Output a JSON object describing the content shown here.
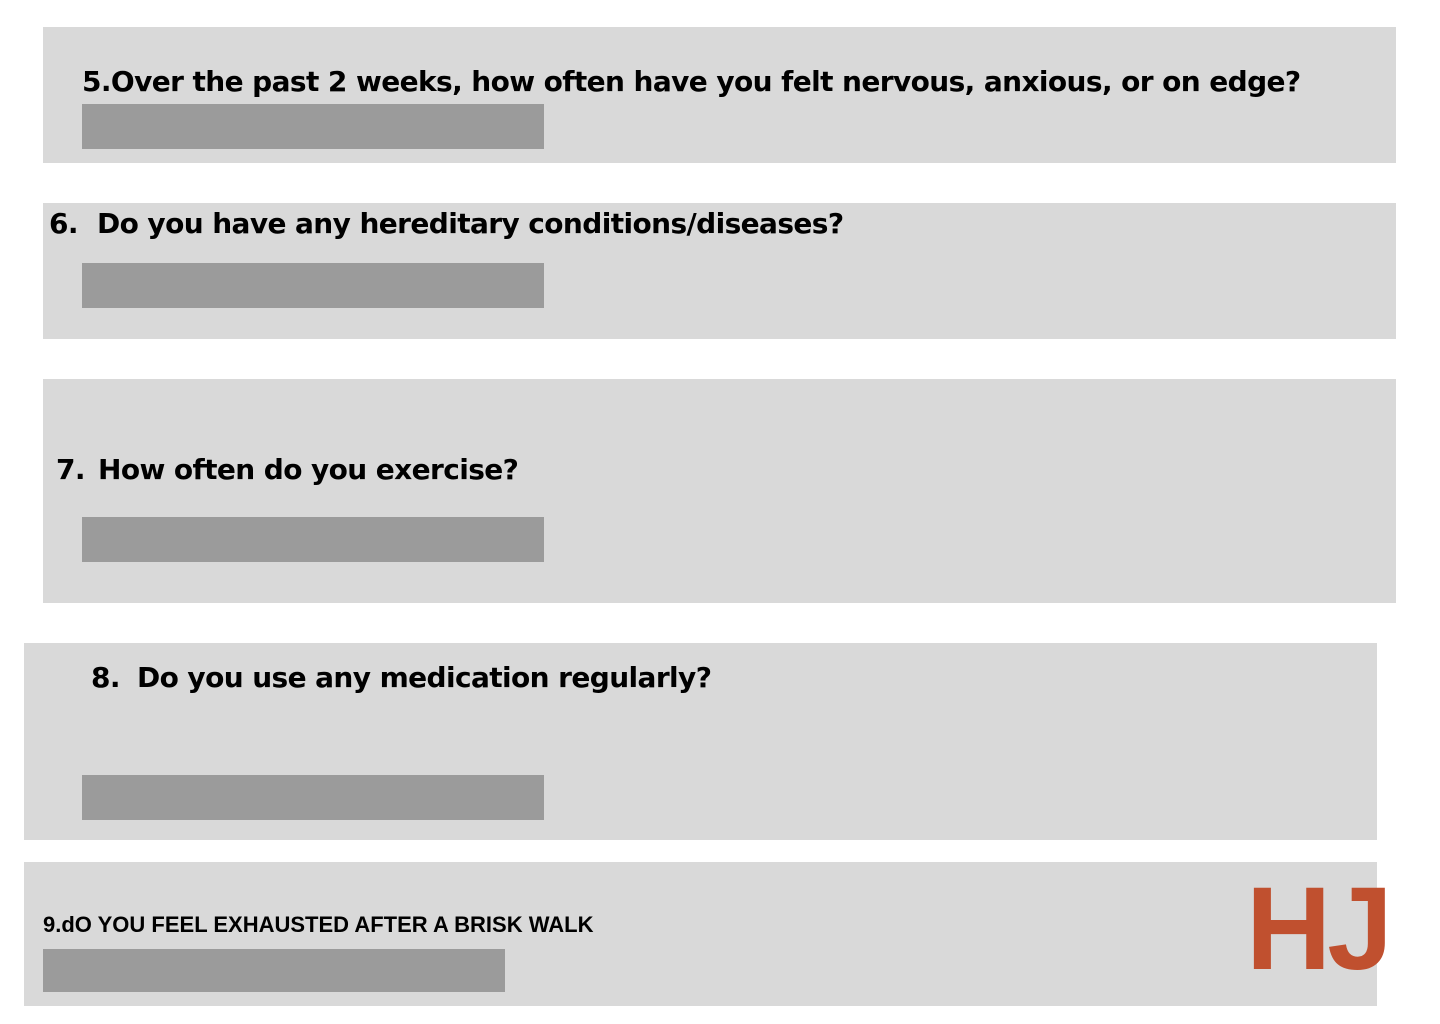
{
  "questions": [
    {
      "number": "5.",
      "text": "Over the past 2 weeks, how often have you felt nervous, anxious, or on edge?",
      "answer": ""
    },
    {
      "number": "6.",
      "text": "Do you have any hereditary conditions/diseases?",
      "answer": ""
    },
    {
      "number": "7.",
      "text": "How often do you exercise?",
      "answer": ""
    },
    {
      "number": "8.",
      "text": "Do you use any medication regularly?",
      "answer": ""
    },
    {
      "number": "9.",
      "text": "dO YOU FEEL EXHAUSTED AFTER A BRISK WALK",
      "answer": ""
    }
  ],
  "logo": {
    "text": "HJ",
    "color": "#c0502f"
  },
  "colors": {
    "card_background": "#d9d9d9",
    "input_background": "#9b9b9b",
    "text": "#000000"
  }
}
